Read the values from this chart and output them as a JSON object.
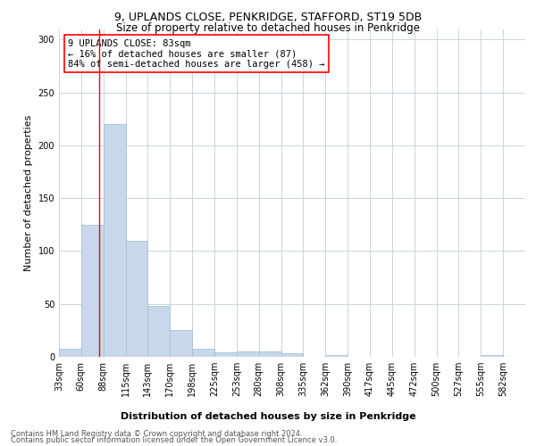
{
  "title1": "9, UPLANDS CLOSE, PENKRIDGE, STAFFORD, ST19 5DB",
  "title2": "Size of property relative to detached houses in Penkridge",
  "xlabel": "Distribution of detached houses by size in Penkridge",
  "ylabel": "Number of detached properties",
  "categories": [
    "33sqm",
    "60sqm",
    "88sqm",
    "115sqm",
    "143sqm",
    "170sqm",
    "198sqm",
    "225sqm",
    "253sqm",
    "280sqm",
    "308sqm",
    "335sqm",
    "362sqm",
    "390sqm",
    "417sqm",
    "445sqm",
    "472sqm",
    "500sqm",
    "527sqm",
    "555sqm",
    "582sqm"
  ],
  "values": [
    8,
    125,
    220,
    110,
    48,
    25,
    8,
    4,
    5,
    5,
    3,
    0,
    2,
    0,
    0,
    0,
    0,
    0,
    0,
    2,
    0
  ],
  "bar_color": "#c8d8ea",
  "bar_edge_color": "#a8c0d4",
  "grid_color": "#c8d4e0",
  "annotation_box_text": "9 UPLANDS CLOSE: 83sqm\n← 16% of detached houses are smaller (87)\n84% of semi-detached houses are larger (458) →",
  "annotation_box_color": "white",
  "annotation_box_edge_color": "red",
  "vline_color": "red",
  "vline_size": 83,
  "bin_edges": [
    33,
    60,
    88,
    115,
    143,
    170,
    198,
    225,
    253,
    280,
    308,
    335,
    362,
    390,
    417,
    445,
    472,
    500,
    527,
    555,
    582,
    609
  ],
  "ylim": [
    0,
    310
  ],
  "yticks": [
    0,
    50,
    100,
    150,
    200,
    250,
    300
  ],
  "footer_line1": "Contains HM Land Registry data © Crown copyright and database right 2024.",
  "footer_line2": "Contains public sector information licensed under the Open Government Licence v3.0.",
  "title1_fontsize": 9,
  "title2_fontsize": 8.5,
  "xlabel_fontsize": 8,
  "ylabel_fontsize": 8,
  "tick_fontsize": 7,
  "annotation_fontsize": 7.5,
  "footer_fontsize": 6
}
